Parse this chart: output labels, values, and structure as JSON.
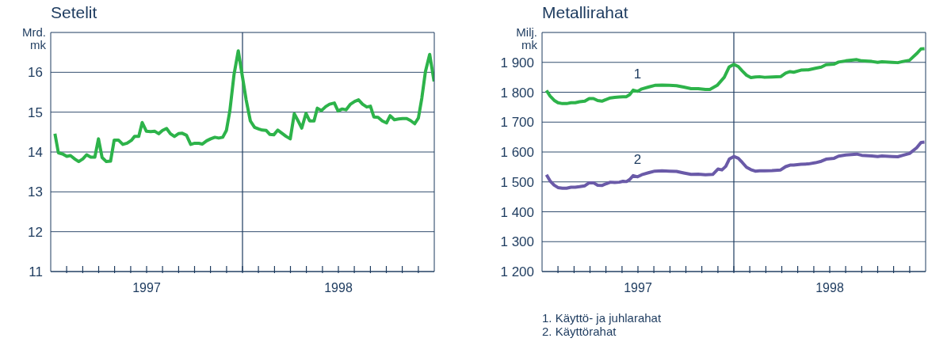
{
  "chart_data": [
    {
      "type": "line",
      "title": "Setelit",
      "ylabel": "Mrd. mk",
      "color": "#2db34a",
      "grid": "y",
      "xlim": [
        1997,
        1999
      ],
      "ylim": [
        11,
        17
      ],
      "yticks": [
        11,
        12,
        13,
        14,
        15,
        16
      ],
      "xticks": [
        {
          "value": 1997.083,
          "label": null
        },
        {
          "value": 1997.167,
          "label": null
        },
        {
          "value": 1997.25,
          "label": null
        },
        {
          "value": 1997.333,
          "label": null
        },
        {
          "value": 1997.417,
          "label": null
        },
        {
          "value": 1997.5,
          "label": "1997"
        },
        {
          "value": 1997.583,
          "label": null
        },
        {
          "value": 1997.667,
          "label": null
        },
        {
          "value": 1997.75,
          "label": null
        },
        {
          "value": 1997.833,
          "label": null
        },
        {
          "value": 1997.917,
          "label": null
        },
        {
          "value": 1998,
          "label": null
        },
        {
          "value": 1998.083,
          "label": null
        },
        {
          "value": 1998.167,
          "label": null
        },
        {
          "value": 1998.25,
          "label": null
        },
        {
          "value": 1998.333,
          "label": null
        },
        {
          "value": 1998.417,
          "label": null
        },
        {
          "value": 1998.5,
          "label": "1998"
        },
        {
          "value": 1998.583,
          "label": null
        },
        {
          "value": 1998.667,
          "label": null
        },
        {
          "value": 1998.75,
          "label": null
        },
        {
          "value": 1998.833,
          "label": null
        },
        {
          "value": 1998.917,
          "label": null
        }
      ],
      "ref_lines": [
        {
          "axis": "x",
          "value": 1998,
          "label": null
        }
      ],
      "x": [
        1997.022,
        1997.04,
        1997.062,
        1997.084,
        1997.103,
        1997.127,
        1997.146,
        1997.168,
        1997.187,
        1997.209,
        1997.23,
        1997.249,
        1997.268,
        1997.29,
        1997.312,
        1997.331,
        1997.353,
        1997.376,
        1997.398,
        1997.42,
        1997.437,
        1997.459,
        1997.477,
        1997.499,
        1997.521,
        1997.543,
        1997.563,
        1997.583,
        1997.604,
        1997.624,
        1997.645,
        1997.666,
        1997.686,
        1997.708,
        1997.73,
        1997.751,
        1997.772,
        1997.791,
        1997.813,
        1997.834,
        1997.856,
        1997.876,
        1997.897,
        1997.916,
        1997.934,
        1997.956,
        1997.978,
        1998.0,
        1998.019,
        1998.041,
        1998.063,
        1998.084,
        1998.103,
        1998.124,
        1998.143,
        1998.163,
        1998.184,
        1998.206,
        1998.228,
        1998.249,
        1998.27,
        1998.29,
        1998.309,
        1998.331,
        1998.35,
        1998.373,
        1998.39,
        1998.412,
        1998.434,
        1998.454,
        1998.479,
        1998.498,
        1998.52,
        1998.54,
        1998.563,
        1998.585,
        1998.605,
        1998.626,
        1998.648,
        1998.667,
        1998.685,
        1998.707,
        1998.729,
        1998.751,
        1998.77,
        1998.792,
        1998.814,
        1998.835,
        1998.856,
        1998.876,
        1998.898,
        1998.917,
        1998.935,
        1998.954,
        1998.976,
        1998.999
      ],
      "values": [
        14.46,
        13.98,
        13.95,
        13.89,
        13.91,
        13.82,
        13.76,
        13.83,
        13.93,
        13.87,
        13.87,
        14.33,
        13.86,
        13.76,
        13.77,
        14.3,
        14.3,
        14.19,
        14.22,
        14.29,
        14.39,
        14.39,
        14.74,
        14.52,
        14.51,
        14.52,
        14.46,
        14.54,
        14.59,
        14.46,
        14.39,
        14.46,
        14.47,
        14.42,
        14.19,
        14.22,
        14.22,
        14.2,
        14.28,
        14.33,
        14.37,
        14.35,
        14.37,
        14.54,
        15.03,
        15.95,
        16.54,
        15.88,
        15.31,
        14.78,
        14.62,
        14.58,
        14.55,
        14.54,
        14.44,
        14.43,
        14.55,
        14.47,
        14.39,
        14.33,
        14.96,
        14.78,
        14.6,
        14.97,
        14.78,
        14.78,
        15.1,
        15.04,
        15.14,
        15.2,
        15.23,
        15.03,
        15.08,
        15.06,
        15.2,
        15.27,
        15.31,
        15.2,
        15.13,
        15.15,
        14.88,
        14.87,
        14.78,
        14.73,
        14.91,
        14.81,
        14.83,
        14.84,
        14.84,
        14.79,
        14.71,
        14.85,
        15.35,
        16.02,
        16.45,
        15.77
      ]
    },
    {
      "type": "line",
      "title": "Metallirahat",
      "ylabel": "Milj. mk",
      "grid": "y",
      "xlim": [
        1997,
        1999
      ],
      "ylim": [
        1200,
        2000
      ],
      "yticks": [
        {
          "value": 1200,
          "label": "1 200"
        },
        {
          "value": 1300,
          "label": "1 300"
        },
        {
          "value": 1400,
          "label": "1 400"
        },
        {
          "value": 1500,
          "label": "1 500"
        },
        {
          "value": 1600,
          "label": "1 600"
        },
        {
          "value": 1700,
          "label": "1 700"
        },
        {
          "value": 1800,
          "label": "1 800"
        },
        {
          "value": 1900,
          "label": "1 900"
        }
      ],
      "xticks": [
        {
          "value": 1997.083,
          "label": null
        },
        {
          "value": 1997.167,
          "label": null
        },
        {
          "value": 1997.25,
          "label": null
        },
        {
          "value": 1997.333,
          "label": null
        },
        {
          "value": 1997.417,
          "label": null
        },
        {
          "value": 1997.5,
          "label": "1997"
        },
        {
          "value": 1997.583,
          "label": null
        },
        {
          "value": 1997.667,
          "label": null
        },
        {
          "value": 1997.75,
          "label": null
        },
        {
          "value": 1997.833,
          "label": null
        },
        {
          "value": 1997.917,
          "label": null
        },
        {
          "value": 1998,
          "label": null
        },
        {
          "value": 1998.083,
          "label": null
        },
        {
          "value": 1998.167,
          "label": null
        },
        {
          "value": 1998.25,
          "label": null
        },
        {
          "value": 1998.333,
          "label": null
        },
        {
          "value": 1998.417,
          "label": null
        },
        {
          "value": 1998.5,
          "label": "1998"
        },
        {
          "value": 1998.583,
          "label": null
        },
        {
          "value": 1998.667,
          "label": null
        },
        {
          "value": 1998.75,
          "label": null
        },
        {
          "value": 1998.833,
          "label": null
        },
        {
          "value": 1998.917,
          "label": null
        }
      ],
      "ref_lines": [
        {
          "axis": "x",
          "value": 1998,
          "label": null
        }
      ],
      "annotations": [
        "1. Käyttö- ja juhlarahat",
        "2. Käyttörahat"
      ],
      "series": [
        {
          "name": "1",
          "color": "#2db34a",
          "x": [
            1997.023,
            1997.042,
            1997.063,
            1997.083,
            1997.106,
            1997.128,
            1997.151,
            1997.173,
            1997.196,
            1997.223,
            1997.246,
            1997.268,
            1997.29,
            1997.312,
            1997.335,
            1997.356,
            1997.379,
            1997.403,
            1997.422,
            1997.44,
            1997.457,
            1997.475,
            1997.498,
            1997.52,
            1997.558,
            1997.588,
            1997.626,
            1997.664,
            1997.701,
            1997.739,
            1997.777,
            1997.814,
            1997.852,
            1997.875,
            1997.913,
            1997.95,
            1997.976,
            1998.0,
            1998.023,
            1998.044,
            1998.066,
            1998.089,
            1998.112,
            1998.134,
            1998.161,
            1998.199,
            1998.244,
            1998.27,
            1998.293,
            1998.312,
            1998.35,
            1998.388,
            1998.425,
            1998.456,
            1998.481,
            1998.523,
            1998.546,
            1998.584,
            1998.641,
            1998.667,
            1998.719,
            1998.75,
            1998.772,
            1998.825,
            1998.855,
            1998.882,
            1998.916,
            1998.953,
            1998.976,
            1998.994
          ],
          "values": [
            1806,
            1787,
            1773,
            1765,
            1762,
            1762,
            1765,
            1765,
            1768,
            1770,
            1779,
            1779,
            1772,
            1770,
            1776,
            1781,
            1783,
            1784,
            1785,
            1785,
            1792,
            1807,
            1803,
            1811,
            1818,
            1823,
            1824,
            1823,
            1822,
            1817,
            1812,
            1812,
            1809,
            1809,
            1823,
            1850,
            1885,
            1893,
            1886,
            1871,
            1857,
            1849,
            1851,
            1852,
            1850,
            1851,
            1852,
            1864,
            1869,
            1867,
            1874,
            1875,
            1880,
            1884,
            1892,
            1894,
            1901,
            1905,
            1909,
            1905,
            1903,
            1900,
            1902,
            1900,
            1899,
            1903,
            1907,
            1929,
            1945,
            1946
          ]
        },
        {
          "name": "2",
          "color": "#6a5aa8",
          "x": [
            1997.023,
            1997.042,
            1997.063,
            1997.083,
            1997.106,
            1997.128,
            1997.151,
            1997.173,
            1997.196,
            1997.223,
            1997.246,
            1997.268,
            1997.29,
            1997.312,
            1997.335,
            1997.356,
            1997.379,
            1997.403,
            1997.422,
            1997.44,
            1997.457,
            1997.475,
            1997.498,
            1997.52,
            1997.558,
            1997.588,
            1997.626,
            1997.664,
            1997.701,
            1997.739,
            1997.777,
            1997.814,
            1997.852,
            1997.89,
            1997.917,
            1997.938,
            1997.958,
            1997.977,
            1998.0,
            1998.023,
            1998.044,
            1998.066,
            1998.089,
            1998.112,
            1998.134,
            1998.161,
            1998.199,
            1998.244,
            1998.27,
            1998.293,
            1998.312,
            1998.35,
            1998.388,
            1998.425,
            1998.456,
            1998.481,
            1998.523,
            1998.546,
            1998.584,
            1998.641,
            1998.667,
            1998.719,
            1998.75,
            1998.772,
            1998.825,
            1998.855,
            1998.882,
            1998.916,
            1998.953,
            1998.976,
            1998.994
          ],
          "values": [
            1524,
            1503,
            1489,
            1481,
            1479,
            1479,
            1482,
            1482,
            1484,
            1487,
            1497,
            1497,
            1489,
            1488,
            1494,
            1499,
            1498,
            1499,
            1502,
            1501,
            1508,
            1521,
            1517,
            1524,
            1531,
            1536,
            1537,
            1536,
            1535,
            1530,
            1525,
            1526,
            1524,
            1525,
            1543,
            1540,
            1552,
            1577,
            1585,
            1579,
            1565,
            1549,
            1541,
            1536,
            1537,
            1537,
            1538,
            1540,
            1551,
            1556,
            1556,
            1559,
            1560,
            1564,
            1569,
            1576,
            1579,
            1586,
            1590,
            1593,
            1589,
            1587,
            1585,
            1587,
            1585,
            1584,
            1589,
            1595,
            1614,
            1632,
            1633
          ]
        }
      ]
    }
  ]
}
